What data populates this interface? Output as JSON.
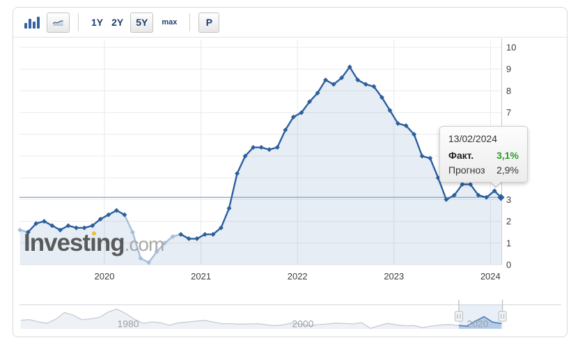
{
  "toolbar": {
    "chart_type_buttons": [
      {
        "name": "bar-chart",
        "selected": false
      },
      {
        "name": "line-chart",
        "selected": true
      }
    ],
    "range_buttons": [
      {
        "label": "1Y",
        "selected": false
      },
      {
        "label": "2Y",
        "selected": false
      },
      {
        "label": "5Y",
        "selected": true
      },
      {
        "label": "max",
        "selected": false
      }
    ],
    "p_button_label": "P"
  },
  "watermark": {
    "pre_i": "Invest",
    "i_char": "ı",
    "post_i": "ng",
    "tld": ".com"
  },
  "tooltip": {
    "date": "13/02/2024",
    "rows": [
      {
        "label": "Факт.",
        "value": "3,1%",
        "emphasis": true
      },
      {
        "label": "Прогноз",
        "value": "2,9%",
        "emphasis": false
      }
    ]
  },
  "colors": {
    "line": "#2c5f9e",
    "line_muted": "#a8bdd9",
    "area": "rgba(52,103,166,0.12)",
    "last_value_line": "#7ca0cc",
    "grid": "#ececec",
    "grid_v": "#e9e9e9",
    "axis_line": "#c8c8c8",
    "axis_text": "#3c3c3c",
    "nav_border": "#d2d6dc",
    "nav_line": "#c6cbd4",
    "nav_fill": "#eef1f5",
    "nav_line_active": "#3a6ba6",
    "nav_fill_active": "#bdd3ec",
    "nav_window": "rgba(150,180,220,0.22)",
    "nav_text": "#9aa1a8",
    "green": "#2e9b2e",
    "navy": "#1c3e70",
    "logo_yellow": "#f0b92e"
  },
  "chart_data": {
    "type": "line",
    "title": "",
    "y_ticks": [
      0,
      1,
      2,
      3,
      4,
      5,
      6,
      7,
      8,
      9,
      10
    ],
    "ylim": [
      0,
      10
    ],
    "x_year_labels": [
      "2020",
      "2021",
      "2022",
      "2023",
      "2024"
    ],
    "last_value_line": 3.1,
    "series": [
      {
        "name": "Факт.",
        "start_t": 2019.125,
        "interval_years": 0.083333,
        "values": [
          1.6,
          1.5,
          1.9,
          2.0,
          1.8,
          1.6,
          1.8,
          1.7,
          1.7,
          1.8,
          2.1,
          2.3,
          2.5,
          2.3,
          1.5,
          0.3,
          0.1,
          0.6,
          1.0,
          1.3,
          1.4,
          1.2,
          1.2,
          1.4,
          1.4,
          1.7,
          2.6,
          4.2,
          5.0,
          5.4,
          5.4,
          5.3,
          5.4,
          6.2,
          6.8,
          7.0,
          7.5,
          7.9,
          8.5,
          8.3,
          8.6,
          9.1,
          8.5,
          8.3,
          8.2,
          7.7,
          7.1,
          6.5,
          6.4,
          6.0,
          5.0,
          4.9,
          4.0,
          3.0,
          3.2,
          3.7,
          3.7,
          3.2,
          3.1,
          3.4,
          3.1
        ],
        "muted_indices": [
          0,
          14,
          15,
          16,
          17,
          18,
          19
        ]
      }
    ],
    "navigator": {
      "tick_labels": [
        "1980",
        "2000",
        "2020"
      ],
      "years": [
        1969,
        1970,
        1971,
        1972,
        1973,
        1974,
        1975,
        1976,
        1977,
        1978,
        1979,
        1980,
        1981,
        1982,
        1983,
        1984,
        1985,
        1986,
        1987,
        1988,
        1989,
        1990,
        1991,
        1992,
        1993,
        1994,
        1995,
        1996,
        1997,
        1998,
        1999,
        2000,
        2001,
        2002,
        2003,
        2004,
        2005,
        2006,
        2007,
        2008,
        2009,
        2010,
        2011,
        2012,
        2013,
        2014,
        2015,
        2016,
        2017,
        2018,
        2019,
        2020,
        2021,
        2022,
        2023,
        2024
      ],
      "values": [
        5.4,
        5.9,
        4.3,
        3.3,
        6.2,
        11.0,
        9.1,
        5.8,
        6.5,
        7.6,
        11.3,
        13.5,
        10.3,
        6.2,
        3.2,
        4.3,
        3.6,
        1.9,
        3.6,
        4.1,
        4.8,
        5.4,
        4.2,
        3.0,
        3.0,
        2.6,
        2.8,
        3.0,
        2.3,
        1.6,
        2.2,
        3.4,
        2.8,
        1.6,
        2.3,
        2.7,
        3.4,
        3.2,
        2.8,
        3.8,
        -0.4,
        1.6,
        3.2,
        2.1,
        1.5,
        1.6,
        0.1,
        1.3,
        2.1,
        2.4,
        1.8,
        1.2,
        4.7,
        8.0,
        4.1,
        3.1
      ],
      "window_years": [
        2019.12,
        2024.12
      ]
    }
  }
}
